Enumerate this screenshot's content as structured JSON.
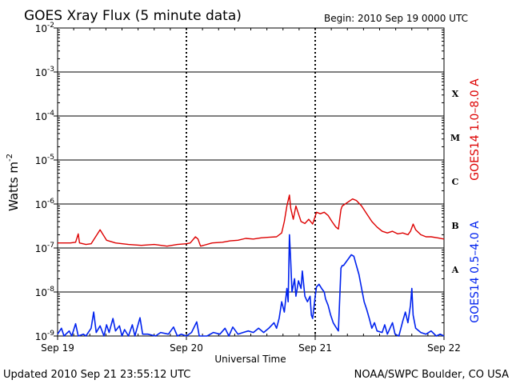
{
  "chart_data": {
    "type": "line",
    "title": "GOES Xray Flux (5 minute data)",
    "begin_label": "Begin:  2010 Sep 19 0000 UTC",
    "xlabel": "Universal Time",
    "ylabel": "Watts m",
    "ylabel_exp": "-2",
    "y_scale": "log",
    "ylim": [
      1e-09,
      0.01
    ],
    "y_ticks": [
      {
        "base": "10",
        "exp": "-2",
        "value": 0.01
      },
      {
        "base": "10",
        "exp": "-3",
        "value": 0.001
      },
      {
        "base": "10",
        "exp": "-4",
        "value": 0.0001
      },
      {
        "base": "10",
        "exp": "-5",
        "value": 1e-05
      },
      {
        "base": "10",
        "exp": "-6",
        "value": 1e-06
      },
      {
        "base": "10",
        "exp": "-7",
        "value": 1e-07
      },
      {
        "base": "10",
        "exp": "-8",
        "value": 1e-08
      },
      {
        "base": "10",
        "exp": "-9",
        "value": 1e-09
      }
    ],
    "xlim_days": [
      0,
      3
    ],
    "x_ticks": [
      {
        "label": "Sep 19",
        "day": 0
      },
      {
        "label": "Sep 20",
        "day": 1
      },
      {
        "label": "Sep 21",
        "day": 2
      },
      {
        "label": "Sep 22",
        "day": 3
      }
    ],
    "flare_classes": [
      {
        "label": "X",
        "value": 0.00032
      },
      {
        "label": "M",
        "value": 3.2e-05
      },
      {
        "label": "C",
        "value": 3.2e-06
      },
      {
        "label": "B",
        "value": 3.2e-07
      },
      {
        "label": "A",
        "value": 3.2e-08
      }
    ],
    "grid": "horizontal at each decade; dashed vertical at each day",
    "series": [
      {
        "name": "GOES14 1.0–8.0 A",
        "color": "#dd0000",
        "points": [
          [
            0.0,
            1.3e-07
          ],
          [
            0.05,
            1.3e-07
          ],
          [
            0.1,
            1.3e-07
          ],
          [
            0.14,
            1.35e-07
          ],
          [
            0.16,
            2.1e-07
          ],
          [
            0.17,
            1.3e-07
          ],
          [
            0.22,
            1.2e-07
          ],
          [
            0.26,
            1.25e-07
          ],
          [
            0.33,
            2.6e-07
          ],
          [
            0.38,
            1.5e-07
          ],
          [
            0.45,
            1.3e-07
          ],
          [
            0.55,
            1.2e-07
          ],
          [
            0.65,
            1.15e-07
          ],
          [
            0.75,
            1.2e-07
          ],
          [
            0.85,
            1.1e-07
          ],
          [
            0.93,
            1.2e-07
          ],
          [
            1.0,
            1.25e-07
          ],
          [
            1.03,
            1.3e-07
          ],
          [
            1.07,
            1.8e-07
          ],
          [
            1.09,
            1.6e-07
          ],
          [
            1.11,
            1.1e-07
          ],
          [
            1.2,
            1.3e-07
          ],
          [
            1.28,
            1.35e-07
          ],
          [
            1.34,
            1.45e-07
          ],
          [
            1.4,
            1.5e-07
          ],
          [
            1.46,
            1.65e-07
          ],
          [
            1.52,
            1.6e-07
          ],
          [
            1.58,
            1.7e-07
          ],
          [
            1.64,
            1.75e-07
          ],
          [
            1.7,
            1.8e-07
          ],
          [
            1.74,
            2.2e-07
          ],
          [
            1.76,
            4e-07
          ],
          [
            1.78,
            9e-07
          ],
          [
            1.8,
            1.6e-06
          ],
          [
            1.81,
            8e-07
          ],
          [
            1.83,
            4.5e-07
          ],
          [
            1.85,
            9e-07
          ],
          [
            1.87,
            6e-07
          ],
          [
            1.89,
            4e-07
          ],
          [
            1.92,
            3.6e-07
          ],
          [
            1.95,
            4.5e-07
          ],
          [
            1.98,
            3.5e-07
          ],
          [
            2.01,
            6.5e-07
          ],
          [
            2.04,
            6e-07
          ],
          [
            2.07,
            6.5e-07
          ],
          [
            2.1,
            5.5e-07
          ],
          [
            2.13,
            4e-07
          ],
          [
            2.16,
            3e-07
          ],
          [
            2.18,
            2.7e-07
          ],
          [
            2.2,
            7.5e-07
          ],
          [
            2.21,
            9e-07
          ],
          [
            2.29,
            1.3e-06
          ],
          [
            2.32,
            1.2e-06
          ],
          [
            2.36,
            9e-07
          ],
          [
            2.4,
            6e-07
          ],
          [
            2.44,
            4e-07
          ],
          [
            2.48,
            3e-07
          ],
          [
            2.52,
            2.4e-07
          ],
          [
            2.56,
            2.2e-07
          ],
          [
            2.6,
            2.4e-07
          ],
          [
            2.64,
            2.1e-07
          ],
          [
            2.68,
            2.2e-07
          ],
          [
            2.72,
            2e-07
          ],
          [
            2.74,
            2.4e-07
          ],
          [
            2.76,
            3.5e-07
          ],
          [
            2.78,
            2.6e-07
          ],
          [
            2.82,
            2e-07
          ],
          [
            2.86,
            1.8e-07
          ],
          [
            2.9,
            1.8e-07
          ],
          [
            2.95,
            1.7e-07
          ],
          [
            3.0,
            1.6e-07
          ]
        ]
      },
      {
        "name": "GOES14 0.5–4.0 A",
        "color": "#0022ee",
        "points": [
          [
            0.0,
            1.1e-09
          ],
          [
            0.03,
            1.5e-09
          ],
          [
            0.05,
            1e-09
          ],
          [
            0.09,
            1.3e-09
          ],
          [
            0.11,
            1e-09
          ],
          [
            0.14,
            1.9e-09
          ],
          [
            0.16,
            1e-09
          ],
          [
            0.2,
            1.1e-09
          ],
          [
            0.22,
            1e-09
          ],
          [
            0.26,
            1.5e-09
          ],
          [
            0.28,
            3.5e-09
          ],
          [
            0.3,
            1.2e-09
          ],
          [
            0.33,
            1.7e-09
          ],
          [
            0.36,
            1e-09
          ],
          [
            0.38,
            1.8e-09
          ],
          [
            0.4,
            1.2e-09
          ],
          [
            0.43,
            2.5e-09
          ],
          [
            0.45,
            1.3e-09
          ],
          [
            0.48,
            1.7e-09
          ],
          [
            0.5,
            1e-09
          ],
          [
            0.52,
            1.4e-09
          ],
          [
            0.55,
            1e-09
          ],
          [
            0.58,
            1.8e-09
          ],
          [
            0.6,
            1e-09
          ],
          [
            0.64,
            2.6e-09
          ],
          [
            0.66,
            1.1e-09
          ],
          [
            0.7,
            1.1e-09
          ],
          [
            0.76,
            1e-09
          ],
          [
            0.8,
            1.2e-09
          ],
          [
            0.86,
            1.1e-09
          ],
          [
            0.9,
            1.6e-09
          ],
          [
            0.93,
            1e-09
          ],
          [
            0.96,
            1.1e-09
          ],
          [
            1.0,
            1e-09
          ],
          [
            1.04,
            1.2e-09
          ],
          [
            1.08,
            2.1e-09
          ],
          [
            1.1,
            1e-09
          ],
          [
            1.16,
            1e-09
          ],
          [
            1.21,
            1.2e-09
          ],
          [
            1.26,
            1.1e-09
          ],
          [
            1.3,
            1.5e-09
          ],
          [
            1.33,
            1e-09
          ],
          [
            1.36,
            1.6e-09
          ],
          [
            1.4,
            1.1e-09
          ],
          [
            1.44,
            1.2e-09
          ],
          [
            1.48,
            1.3e-09
          ],
          [
            1.52,
            1.2e-09
          ],
          [
            1.56,
            1.5e-09
          ],
          [
            1.6,
            1.2e-09
          ],
          [
            1.64,
            1.5e-09
          ],
          [
            1.68,
            2e-09
          ],
          [
            1.7,
            1.5e-09
          ],
          [
            1.72,
            2.5e-09
          ],
          [
            1.74,
            6e-09
          ],
          [
            1.76,
            3.5e-09
          ],
          [
            1.78,
            1.2e-08
          ],
          [
            1.79,
            6e-09
          ],
          [
            1.8,
            2e-07
          ],
          [
            1.81,
            5e-08
          ],
          [
            1.82,
            1e-08
          ],
          [
            1.84,
            2e-08
          ],
          [
            1.85,
            8e-09
          ],
          [
            1.87,
            1.8e-08
          ],
          [
            1.89,
            1.2e-08
          ],
          [
            1.9,
            3e-08
          ],
          [
            1.92,
            8e-09
          ],
          [
            1.94,
            6e-09
          ],
          [
            1.96,
            8e-09
          ],
          [
            1.97,
            3e-09
          ],
          [
            1.98,
            2.5e-09
          ],
          [
            2.0,
            8e-09
          ],
          [
            2.01,
            1.3e-08
          ],
          [
            2.03,
            1.5e-08
          ],
          [
            2.05,
            1.2e-08
          ],
          [
            2.07,
            1e-08
          ],
          [
            2.08,
            7e-09
          ],
          [
            2.1,
            5e-09
          ],
          [
            2.12,
            3e-09
          ],
          [
            2.14,
            2e-09
          ],
          [
            2.16,
            1.6e-09
          ],
          [
            2.18,
            1.3e-09
          ],
          [
            2.2,
            3.5e-08
          ],
          [
            2.21,
            4e-08
          ],
          [
            2.22,
            4e-08
          ],
          [
            2.28,
            7e-08
          ],
          [
            2.3,
            6.5e-08
          ],
          [
            2.32,
            4e-08
          ],
          [
            2.34,
            2.5e-08
          ],
          [
            2.36,
            1.2e-08
          ],
          [
            2.38,
            6e-09
          ],
          [
            2.4,
            4e-09
          ],
          [
            2.42,
            2.5e-09
          ],
          [
            2.44,
            1.5e-09
          ],
          [
            2.46,
            2e-09
          ],
          [
            2.48,
            1.3e-09
          ],
          [
            2.52,
            1.2e-09
          ],
          [
            2.54,
            1.8e-09
          ],
          [
            2.56,
            1.1e-09
          ],
          [
            2.6,
            2e-09
          ],
          [
            2.62,
            1.1e-09
          ],
          [
            2.65,
            1e-09
          ],
          [
            2.68,
            2.2e-09
          ],
          [
            2.7,
            3.5e-09
          ],
          [
            2.72,
            2e-09
          ],
          [
            2.74,
            5e-09
          ],
          [
            2.75,
            1.2e-08
          ],
          [
            2.76,
            3e-09
          ],
          [
            2.78,
            1.5e-09
          ],
          [
            2.82,
            1.2e-09
          ],
          [
            2.86,
            1.1e-09
          ],
          [
            2.9,
            1.3e-09
          ],
          [
            2.94,
            1e-09
          ],
          [
            2.97,
            1.1e-09
          ],
          [
            3.0,
            1e-09
          ]
        ]
      }
    ]
  },
  "footer": {
    "updated": "Updated 2010 Sep 21 23:55:12 UTC",
    "credit": "NOAA/SWPC Boulder, CO USA"
  }
}
